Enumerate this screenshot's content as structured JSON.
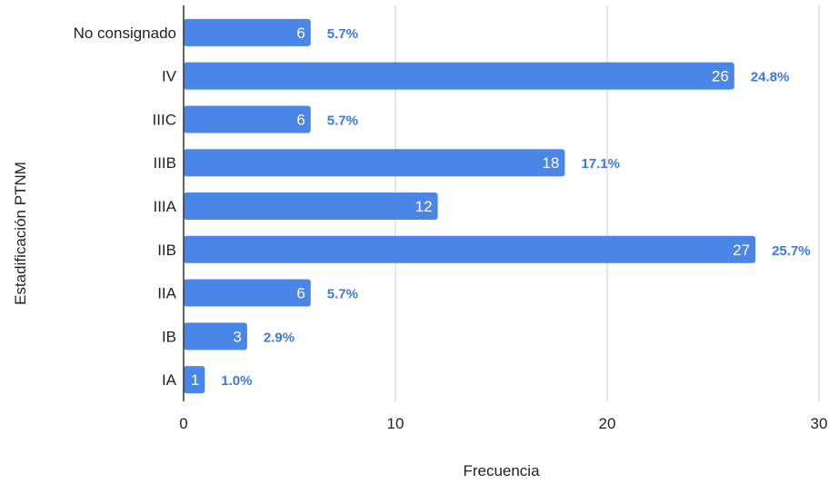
{
  "chart_data": {
    "type": "bar",
    "orientation": "horizontal",
    "categories": [
      "No consignado",
      "IV",
      "IIIC",
      "IIIB",
      "IIIA",
      "IIB",
      "IIA",
      "IB",
      "IA"
    ],
    "values": [
      6,
      26,
      6,
      18,
      12,
      27,
      6,
      3,
      1
    ],
    "percent_labels": [
      "5.7%",
      "24.8%",
      "5.7%",
      "17.1%",
      "",
      "25.7%",
      "5.7%",
      "2.9%",
      "1.0%"
    ],
    "xlabel": "Frecuencia",
    "ylabel": "Estadificación PTNM",
    "xlim": [
      0,
      30
    ],
    "xticks": [
      0,
      10,
      20,
      30
    ],
    "grid": true,
    "colors": {
      "bar": "#4a86e8",
      "percent_text": "#3b78e7",
      "grid": "#cccccc",
      "axis": "#333333"
    }
  }
}
